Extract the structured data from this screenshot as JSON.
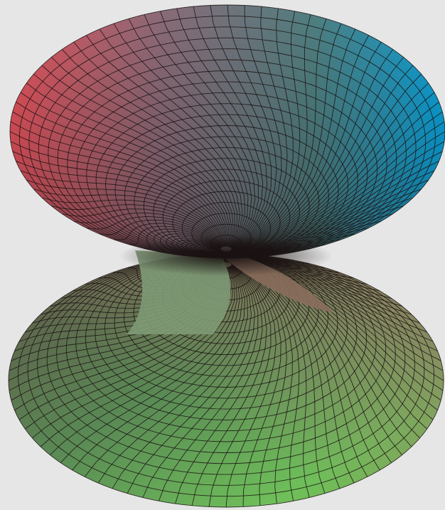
{
  "figure": {
    "subject": "hyperboloid-surface-mesh",
    "background_color": "#e6e6e6",
    "mesh_line_color": "#1a1212",
    "palette": {
      "red": "#e5525c",
      "cyan": "#0aa3dc",
      "teal": "#1f9a8f",
      "mauve": "#8a6b78",
      "brown": "#9a7a66",
      "green": "#6fbf5a",
      "olive": "#7b8a55",
      "dark": "#2a1c1c"
    },
    "surface": {
      "radial_grid_lines": 80,
      "ring_grid_lines": 22
    }
  }
}
